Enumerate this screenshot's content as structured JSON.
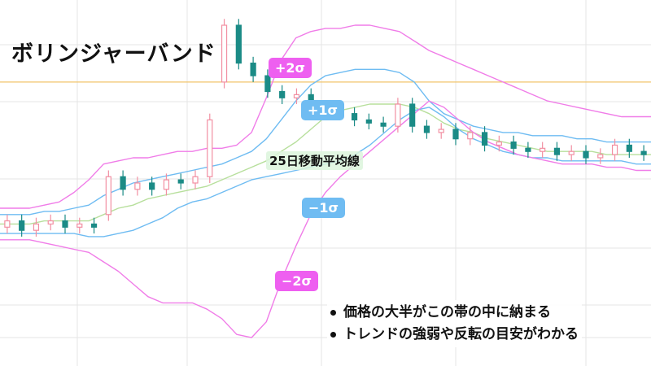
{
  "title": "ボリンジャーバンド",
  "badges": {
    "plus2": "+2σ",
    "plus1": "+1σ",
    "minus1": "−1σ",
    "minus2": "−2σ"
  },
  "ma_label": "25日移動平均線",
  "notes": [
    "価格の大半がこの帯の中に納まる",
    "トレンドの強弱や反転の目安がわかる"
  ],
  "colors": {
    "plus2": "#f07ce8",
    "plus1": "#6fbcf2",
    "ma": "#b7df9c",
    "minus1": "#6fbcf2",
    "minus2": "#f07ce8",
    "candle_up": "#f28fa2",
    "candle_down": "#1b8b86",
    "horizontal_line": "#f2c469",
    "grid": "#e6e6e6"
  },
  "chart_data": {
    "type": "line",
    "grid": true,
    "series": [
      {
        "name": "+2σ",
        "values": [
          42,
          42,
          42,
          43,
          44,
          47,
          51,
          56,
          57,
          58,
          58,
          59,
          60,
          60,
          61,
          61,
          62,
          66,
          77,
          89,
          96,
          98,
          99,
          99,
          100,
          100,
          99,
          98,
          95,
          92,
          90,
          88,
          86,
          84,
          82,
          80,
          78,
          76,
          75,
          74,
          73,
          72,
          71,
          71,
          71
        ]
      },
      {
        "name": "+1σ",
        "values": [
          40,
          40,
          40,
          41,
          41,
          42,
          43,
          46,
          48,
          50,
          51,
          52,
          53,
          54,
          55,
          56,
          58,
          60,
          64,
          70,
          76,
          81,
          84,
          85,
          86,
          86,
          86,
          85,
          82,
          76,
          72,
          70,
          68,
          67,
          66,
          66,
          65,
          65,
          65,
          64,
          64,
          63,
          63,
          63,
          63
        ]
      },
      {
        "name": "25日移動平均線",
        "values": [
          37,
          37,
          37,
          38,
          38,
          38,
          38,
          40,
          42,
          43,
          45,
          46,
          47,
          48,
          49,
          51,
          53,
          55,
          57,
          60,
          63,
          67,
          71,
          73,
          74,
          75,
          75,
          75,
          74,
          72,
          69,
          67,
          66,
          64,
          63,
          62,
          61,
          60,
          60,
          60,
          60,
          59,
          59,
          59,
          59
        ]
      },
      {
        "name": "−1σ",
        "values": [
          34,
          34,
          34,
          34,
          34,
          34,
          33,
          33,
          34,
          35,
          37,
          39,
          42,
          44,
          45,
          47,
          49,
          51,
          52,
          53,
          54,
          55,
          56,
          57,
          59,
          62,
          66,
          70,
          73,
          74,
          71,
          67,
          64,
          62,
          60,
          59,
          58,
          58,
          57,
          57,
          57,
          57,
          57,
          56,
          56
        ]
      },
      {
        "name": "−2σ",
        "values": [
          32,
          32,
          32,
          31,
          30,
          29,
          28,
          25,
          22,
          18,
          14,
          12,
          12,
          12,
          10,
          7,
          2,
          1,
          6,
          19,
          30,
          40,
          47,
          52,
          56,
          60,
          64,
          68,
          72,
          76,
          74,
          70,
          66,
          63,
          61,
          59,
          58,
          57,
          56,
          56,
          56,
          55,
          55,
          54,
          54
        ]
      }
    ],
    "candles": [
      {
        "o": 36,
        "c": 38
      },
      {
        "o": 38,
        "c": 35
      },
      {
        "o": 35,
        "c": 37
      },
      {
        "o": 37,
        "c": 38
      },
      {
        "o": 38,
        "c": 36
      },
      {
        "o": 36,
        "c": 37
      },
      {
        "o": 37,
        "c": 36
      },
      {
        "o": 40,
        "c": 52
      },
      {
        "o": 52,
        "c": 48
      },
      {
        "o": 48,
        "c": 50
      },
      {
        "o": 50,
        "c": 48
      },
      {
        "o": 48,
        "c": 51
      },
      {
        "o": 51,
        "c": 50
      },
      {
        "o": 50,
        "c": 52
      },
      {
        "o": 52,
        "c": 70
      },
      {
        "o": 82,
        "c": 100
      },
      {
        "o": 100,
        "c": 88
      },
      {
        "o": 88,
        "c": 84
      },
      {
        "o": 84,
        "c": 79
      },
      {
        "o": 79,
        "c": 77
      },
      {
        "o": 77,
        "c": 78
      },
      {
        "o": 78,
        "c": 74
      },
      {
        "o": 74,
        "c": 73
      },
      {
        "o": 73,
        "c": 72
      },
      {
        "o": 72,
        "c": 70
      },
      {
        "o": 70,
        "c": 69
      },
      {
        "o": 69,
        "c": 68
      },
      {
        "o": 68,
        "c": 75
      },
      {
        "o": 75,
        "c": 68
      },
      {
        "o": 68,
        "c": 66
      },
      {
        "o": 66,
        "c": 67
      },
      {
        "o": 67,
        "c": 64
      },
      {
        "o": 64,
        "c": 66
      },
      {
        "o": 66,
        "c": 62
      },
      {
        "o": 62,
        "c": 63
      },
      {
        "o": 63,
        "c": 61
      },
      {
        "o": 61,
        "c": 60
      },
      {
        "o": 60,
        "c": 61
      },
      {
        "o": 61,
        "c": 59
      },
      {
        "o": 59,
        "c": 60
      },
      {
        "o": 60,
        "c": 58
      },
      {
        "o": 58,
        "c": 59
      },
      {
        "o": 59,
        "c": 62
      },
      {
        "o": 62,
        "c": 60
      },
      {
        "o": 60,
        "c": 59
      }
    ],
    "reference_line": 82,
    "ylim": [
      -8,
      108
    ]
  }
}
